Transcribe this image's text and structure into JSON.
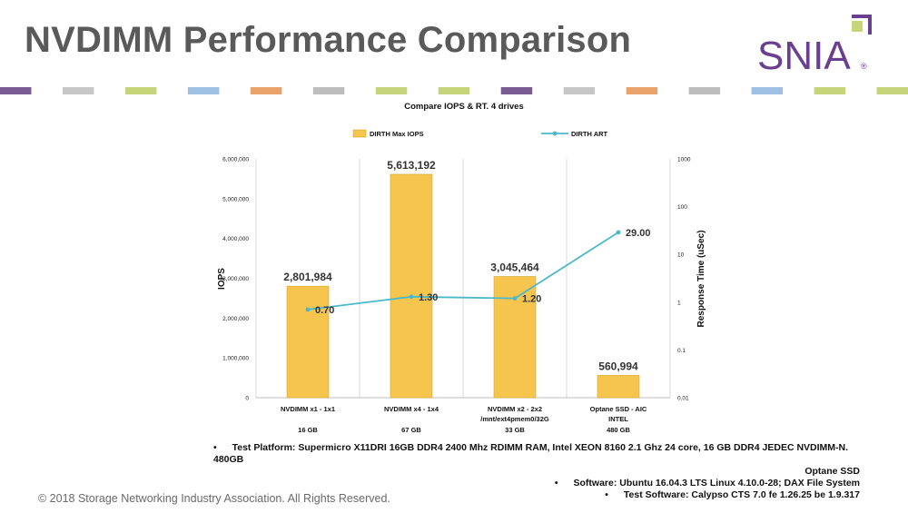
{
  "slide": {
    "title": "NVDIMM Performance Comparison",
    "logo_text": "SNIA",
    "logo_mark": "®",
    "copyright": "© 2018 Storage Networking Industry Association. All Rights Reserved.",
    "stripe_colors": [
      "#7b5c92",
      "#ffffff",
      "#c7c7c7",
      "#ffffff",
      "#c6d57a",
      "#ffffff",
      "#9ec0e2",
      "#ffffff",
      "#e9a26a",
      "#ffffff",
      "#bdbdbd",
      "#ffffff",
      "#c6d57a",
      "#ffffff",
      "#c6d57a",
      "#ffffff",
      "#7b5c92",
      "#ffffff",
      "#c7c7c7",
      "#ffffff",
      "#e9a26a",
      "#ffffff",
      "#bdbdbd",
      "#ffffff",
      "#9ec0e2",
      "#ffffff",
      "#c6d57a",
      "#ffffff",
      "#c6d57a"
    ]
  },
  "notes": {
    "bullet": "•",
    "platform_label": "Test Platform:",
    "platform_text": "Supermicro X11DRI 16GB DDR4 2400 Mhz RDIMM RAM, Intel XEON 8160 2.1 Ghz 24 core, 16 GB DDR4 JEDEC NVDIMM-N. 480GB",
    "platform_text2": "Optane SSD",
    "software_label": "Software:",
    "software_text": "Ubuntu 16.04.3 LTS Linux 4.10.0-28; DAX File System",
    "test_software_label": "Test Software:",
    "test_software_text": "Calypso CTS 7.0 fe 1.26.25 be 1.9.317"
  },
  "chart_data": {
    "type": "bar",
    "title": "Compare IOPS & RT. 4 drives",
    "categories": [
      "NVDIMM x1 - 1x1",
      "NVDIMM x4 - 1x4",
      "NVDIMM x2 - 2x2",
      "Optane SSD - AIC"
    ],
    "categories_line2": [
      "",
      "",
      "/mnt/ext4pmem0/32G",
      "INTEL"
    ],
    "capacities": [
      "16 GB",
      "67 GB",
      "33 GB",
      "480 GB"
    ],
    "series": [
      {
        "name": "DIRTH Max IOPS",
        "type": "bar",
        "axis": "left",
        "color": "#f5c54e",
        "values": [
          2801984,
          5613192,
          3045464,
          560994
        ],
        "labels": [
          "2,801,984",
          "5,613,192",
          "3,045,464",
          "560,994"
        ]
      },
      {
        "name": "DIRTH ART",
        "type": "line",
        "axis": "right",
        "color": "#4bb9c9",
        "values": [
          0.7,
          1.3,
          1.2,
          29.0
        ],
        "labels": [
          "0.70",
          "1.30",
          "1.20",
          "29.00"
        ]
      }
    ],
    "ylabel": "IOPS",
    "ylim": [
      0,
      6000000
    ],
    "yticks": [
      0,
      1000000,
      2000000,
      3000000,
      4000000,
      5000000,
      6000000
    ],
    "ytick_labels": [
      "0",
      "1,000,000",
      "2,000,000",
      "3,000,000",
      "4,000,000",
      "5,000,000",
      "6,000,000"
    ],
    "y2label": "Response Time (uSec)",
    "y2scale": "log",
    "y2lim": [
      0.01,
      1000
    ],
    "y2ticks": [
      0.01,
      0.1,
      1,
      10,
      100,
      1000
    ],
    "y2tick_labels": [
      "0.01",
      "0.1",
      "1",
      "10",
      "100",
      "1000"
    ],
    "legend_position": "top",
    "grid": "vertical category separators"
  }
}
